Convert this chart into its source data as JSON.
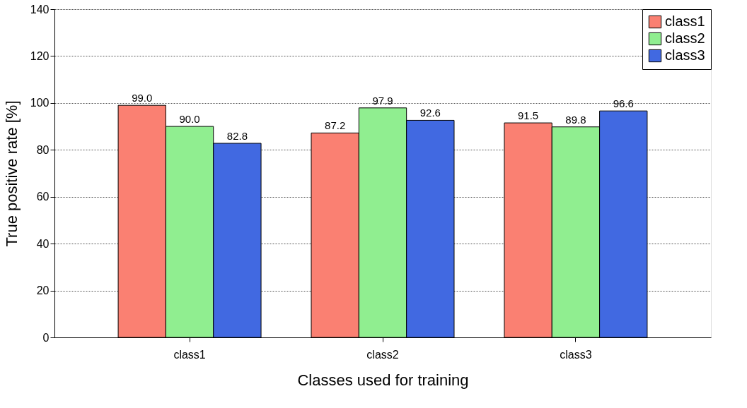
{
  "chart_data": {
    "type": "bar",
    "xlabel": "Classes used for training",
    "ylabel": "True positive rate [%]",
    "categories": [
      "class1",
      "class2",
      "class3"
    ],
    "series": [
      {
        "name": "class1",
        "color": "#fa8072",
        "values": [
          99.0,
          87.2,
          91.5
        ],
        "value_labels": [
          "99.0",
          "87.2",
          "91.5"
        ]
      },
      {
        "name": "class2",
        "color": "#90ee90",
        "values": [
          90.0,
          97.9,
          89.8
        ],
        "value_labels": [
          "90.0",
          "97.9",
          "89.8"
        ]
      },
      {
        "name": "class3",
        "color": "#4169e1",
        "values": [
          82.8,
          92.6,
          96.6
        ],
        "value_labels": [
          "82.8",
          "92.6",
          "96.6"
        ]
      }
    ],
    "ylim": [
      0,
      140
    ],
    "yticks": [
      0,
      20,
      40,
      60,
      80,
      100,
      120,
      140
    ],
    "grid": "y",
    "legend": "top right"
  }
}
